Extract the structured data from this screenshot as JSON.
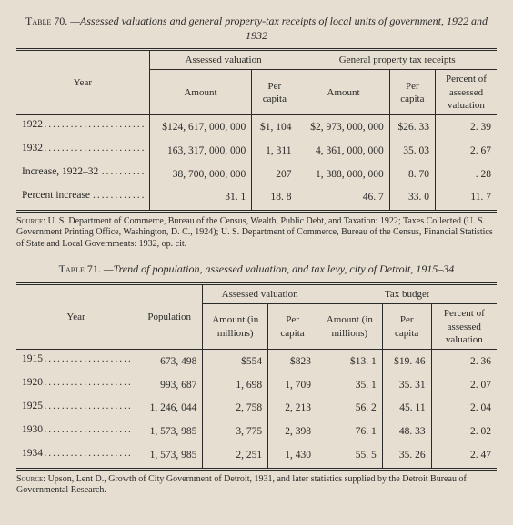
{
  "table70": {
    "label": "Table 70.",
    "caption": "—Assessed valuations and general property-tax receipts of local units of government, 1922 and 1932",
    "columns": {
      "year": "Year",
      "av_group": "Assessed valuation",
      "av_amount": "Amount",
      "av_percap": "Per capita",
      "gp_group": "General property tax receipts",
      "gp_amount": "Amount",
      "gp_percap": "Per capita",
      "pct": "Percent of assessed valuation"
    },
    "rows": [
      {
        "year": "1922",
        "av_amount": "$124, 617, 000, 000",
        "av_percap": "$1, 104",
        "gp_amount": "$2, 973, 000, 000",
        "gp_percap": "$26. 33",
        "pct": "2. 39"
      },
      {
        "year": "1932",
        "av_amount": "163, 317, 000, 000",
        "av_percap": "1, 311",
        "gp_amount": "4, 361, 000, 000",
        "gp_percap": "35. 03",
        "pct": "2. 67"
      },
      {
        "year": "Increase, 1922–32",
        "av_amount": "38, 700, 000, 000",
        "av_percap": "207",
        "gp_amount": "1, 388, 000, 000",
        "gp_percap": "8. 70",
        "pct": ". 28"
      },
      {
        "year": "Percent increase",
        "av_amount": "31. 1",
        "av_percap": "18. 8",
        "gp_amount": "46. 7",
        "gp_percap": "33. 0",
        "pct": "11. 7"
      }
    ],
    "source_label": "Source:",
    "source": "U. S. Department of Commerce, Bureau of the Census, Wealth, Public Debt, and Taxation: 1922; Taxes Collected (U. S. Government Printing Office, Washington, D. C., 1924); U. S. Department of Commerce, Bureau of the Census, Financial Statistics of State and Local Governments: 1932, op. cit."
  },
  "table71": {
    "label": "Table 71.",
    "caption": "—Trend of population, assessed valuation, and tax levy, city of Detroit, 1915–34",
    "columns": {
      "year": "Year",
      "pop": "Population",
      "av_group": "Assessed valuation",
      "av_amount": "Amount (in millions)",
      "av_percap": "Per capita",
      "tb_group": "Tax budget",
      "tb_amount": "Amount (in millions)",
      "tb_percap": "Per capita",
      "pct": "Percent of assessed valuation"
    },
    "rows": [
      {
        "year": "1915",
        "pop": "673, 498",
        "av_amount": "$554",
        "av_percap": "$823",
        "tb_amount": "$13. 1",
        "tb_percap": "$19. 46",
        "pct": "2. 36"
      },
      {
        "year": "1920",
        "pop": "993, 687",
        "av_amount": "1, 698",
        "av_percap": "1, 709",
        "tb_amount": "35. 1",
        "tb_percap": "35. 31",
        "pct": "2. 07"
      },
      {
        "year": "1925",
        "pop": "1, 246, 044",
        "av_amount": "2, 758",
        "av_percap": "2, 213",
        "tb_amount": "56. 2",
        "tb_percap": "45. 11",
        "pct": "2. 04"
      },
      {
        "year": "1930",
        "pop": "1, 573, 985",
        "av_amount": "3, 775",
        "av_percap": "2, 398",
        "tb_amount": "76. 1",
        "tb_percap": "48. 33",
        "pct": "2. 02"
      },
      {
        "year": "1934",
        "pop": "1, 573, 985",
        "av_amount": "2, 251",
        "av_percap": "1, 430",
        "tb_amount": "55. 5",
        "tb_percap": "35. 26",
        "pct": "2. 47"
      }
    ],
    "source_label": "Source:",
    "source": "Upson, Lent D., Growth of City Government of Detroit, 1931, and later statistics supplied by the Detroit Bureau of Governmental Research."
  }
}
